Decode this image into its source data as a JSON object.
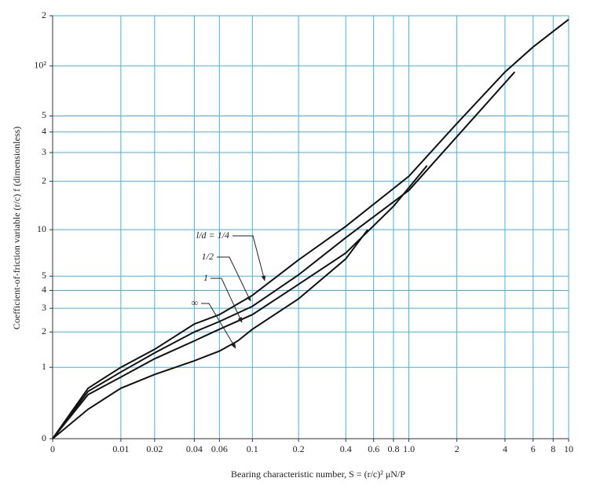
{
  "chart_data": {
    "type": "line",
    "x_label": "Bearing characteristic number, S = (r/c)² μN/P",
    "y_label": "Coefficient-of-friction variable (r/c) f (dimensionless)",
    "xlim": [
      0,
      10
    ],
    "ylim": [
      0,
      200
    ],
    "xticks": [
      0,
      0.01,
      0.02,
      0.04,
      0.06,
      0.1,
      0.2,
      0.4,
      0.6,
      0.8,
      {
        "value": 1,
        "label": "1.0"
      },
      2,
      4,
      6,
      8,
      10
    ],
    "yticks": [
      0,
      1,
      2,
      3,
      4,
      5,
      10,
      {
        "value": 20,
        "label": "2"
      },
      {
        "value": 30,
        "label": "3"
      },
      {
        "value": 40,
        "label": "4"
      },
      {
        "value": 50,
        "label": "5"
      },
      {
        "value": 100,
        "label": "10²"
      },
      {
        "value": 200,
        "label": "2"
      }
    ],
    "grid": true,
    "grid_color": "#45b2dc",
    "series": [
      {
        "name": "l/d = 1/4",
        "color": "#111111",
        "x": [
          0,
          0.004,
          0.01,
          0.02,
          0.04,
          0.06,
          0.1,
          0.2,
          0.4,
          1.0,
          2,
          4,
          6,
          10
        ],
        "values": [
          0,
          0.6,
          1.0,
          1.45,
          2.3,
          2.7,
          3.7,
          6.4,
          10.5,
          21.5,
          45,
          92,
          130,
          190
        ]
      },
      {
        "name": "1/2",
        "color": "#111111",
        "x": [
          0,
          0.004,
          0.01,
          0.02,
          0.04,
          0.06,
          0.1,
          0.2,
          0.4,
          1.0,
          2,
          4.6
        ],
        "values": [
          0,
          0.55,
          0.9,
          1.35,
          2.0,
          2.4,
          3.1,
          5.1,
          8.9,
          17.6,
          37.5,
          92
        ]
      },
      {
        "name": "1",
        "color": "#111111",
        "x": [
          0,
          0.004,
          0.01,
          0.02,
          0.04,
          0.06,
          0.1,
          0.2,
          0.4,
          0.8,
          1.3
        ],
        "values": [
          0,
          0.5,
          0.8,
          1.2,
          1.7,
          2.1,
          2.7,
          4.4,
          7.1,
          14,
          25
        ]
      },
      {
        "name": "∞",
        "color": "#111111",
        "x": [
          0,
          0.004,
          0.01,
          0.02,
          0.04,
          0.06,
          0.08,
          0.1,
          0.2,
          0.4,
          0.55
        ],
        "values": [
          0,
          0.3,
          0.6,
          0.85,
          1.15,
          1.4,
          1.7,
          2.1,
          3.5,
          6.5,
          10
        ]
      }
    ]
  }
}
